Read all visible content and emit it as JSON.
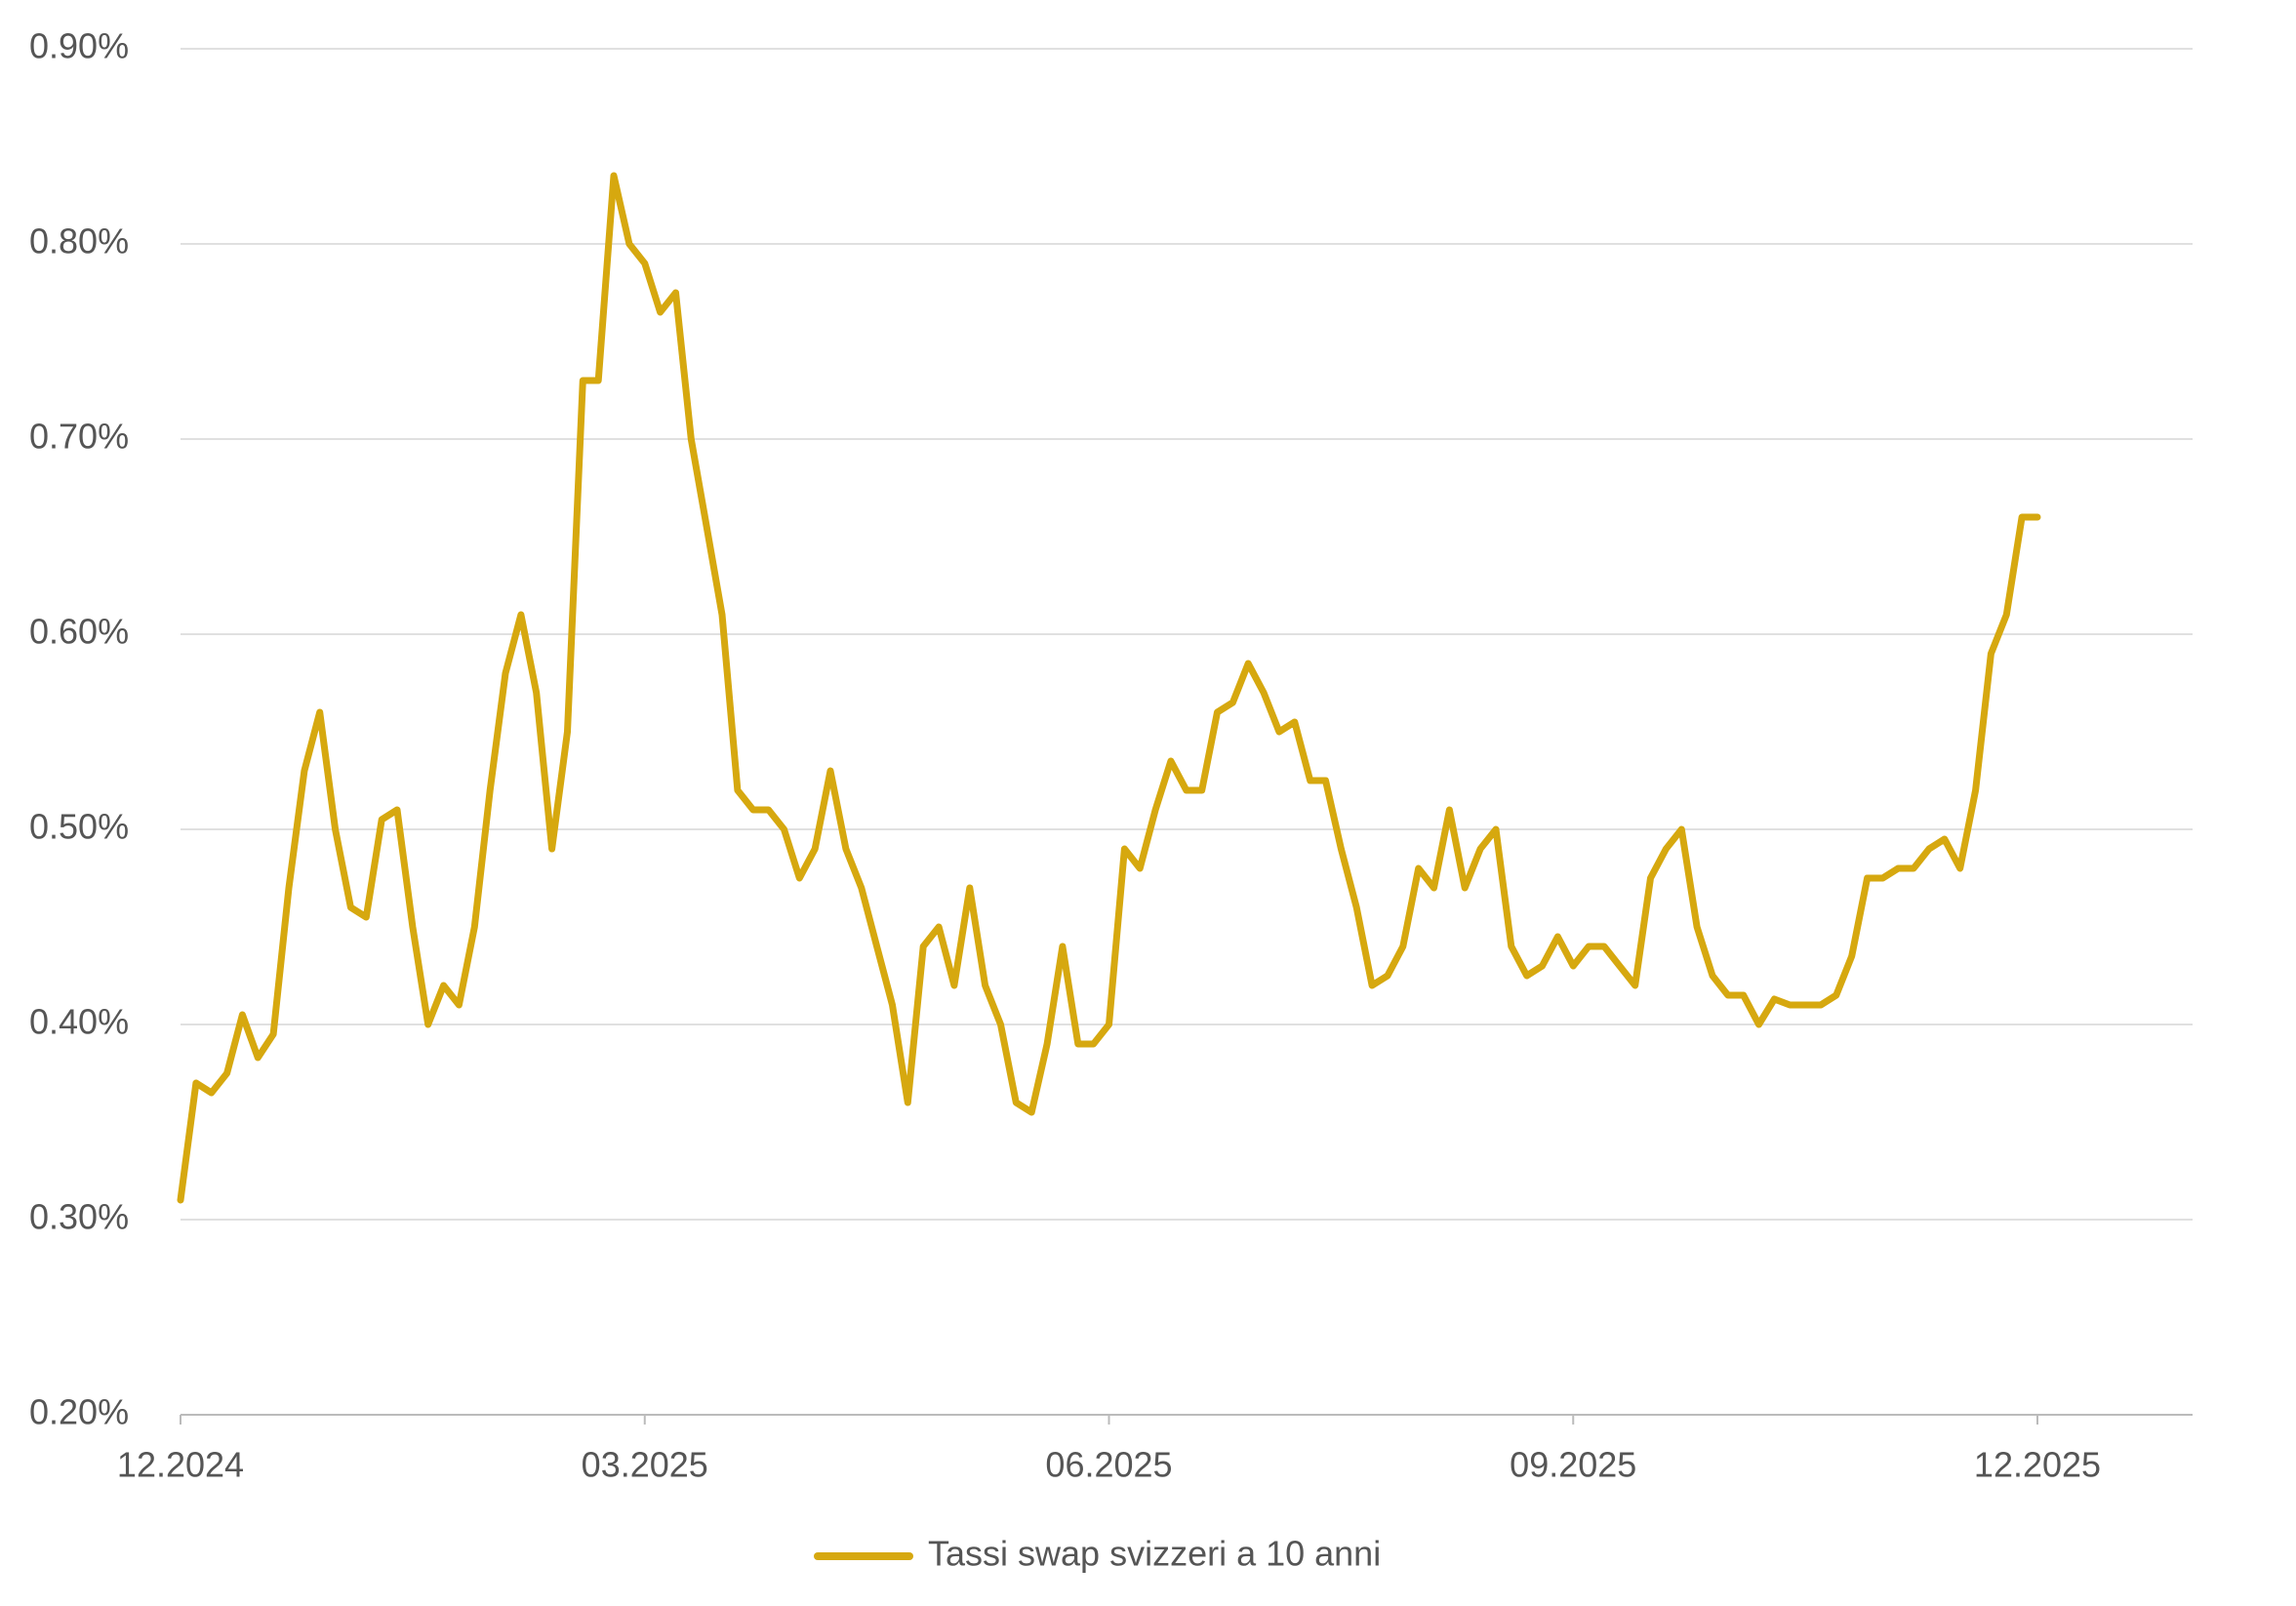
{
  "chart_data": {
    "type": "line",
    "categories": [
      "12.2024",
      null,
      null,
      null,
      null,
      null,
      null,
      null,
      null,
      null,
      null,
      null,
      null,
      null,
      null,
      null,
      null,
      null,
      null,
      null,
      null,
      null,
      null,
      null,
      null,
      null,
      null,
      null,
      null,
      null,
      "03.2025",
      null,
      null,
      null,
      null,
      null,
      null,
      null,
      null,
      null,
      null,
      null,
      null,
      null,
      null,
      null,
      null,
      null,
      null,
      null,
      null,
      null,
      null,
      null,
      null,
      null,
      null,
      null,
      null,
      null,
      "06.2025",
      null,
      null,
      null,
      null,
      null,
      null,
      null,
      null,
      null,
      null,
      null,
      null,
      null,
      null,
      null,
      null,
      null,
      null,
      null,
      null,
      null,
      null,
      null,
      null,
      null,
      null,
      null,
      null,
      null,
      "09.2025",
      null,
      null,
      null,
      null,
      null,
      null,
      null,
      null,
      null,
      null,
      null,
      null,
      null,
      null,
      null,
      null,
      null,
      null,
      null,
      null,
      null,
      null,
      null,
      null,
      null,
      null,
      null,
      null,
      null,
      "12.2025"
    ],
    "series": [
      {
        "name": "Tassi swap svizzeri a 10 anni",
        "color": "#d6a80f",
        "values": [
          0.31,
          0.37,
          0.365,
          0.375,
          0.405,
          0.383,
          0.395,
          0.47,
          0.53,
          0.56,
          0.5,
          0.46,
          0.455,
          0.505,
          0.51,
          0.45,
          0.4,
          0.42,
          0.41,
          0.45,
          0.52,
          0.58,
          0.61,
          0.57,
          0.49,
          0.55,
          0.73,
          0.73,
          0.835,
          0.8,
          0.79,
          0.765,
          0.775,
          0.7,
          0.655,
          0.61,
          0.52,
          0.51,
          0.51,
          0.5,
          0.475,
          0.49,
          0.53,
          0.49,
          0.47,
          0.44,
          0.41,
          0.36,
          0.44,
          0.45,
          0.42,
          0.47,
          0.42,
          0.4,
          0.36,
          0.355,
          0.39,
          0.44,
          0.39,
          0.39,
          0.4,
          0.49,
          0.48,
          0.51,
          0.535,
          0.52,
          0.52,
          0.56,
          0.565,
          0.585,
          0.57,
          0.55,
          0.555,
          0.525,
          0.525,
          0.49,
          0.46,
          0.42,
          0.425,
          0.44,
          0.48,
          0.47,
          0.51,
          0.47,
          0.49,
          0.5,
          0.44,
          0.425,
          0.43,
          0.445,
          0.43,
          0.44,
          0.44,
          0.43,
          0.42,
          0.475,
          0.49,
          0.5,
          0.45,
          0.425,
          0.415,
          0.415,
          0.4,
          0.413,
          0.41,
          0.41,
          0.41,
          0.415,
          0.435,
          0.475,
          0.475,
          0.48,
          0.48,
          0.49,
          0.495,
          0.48,
          0.52,
          0.59,
          0.61,
          0.66,
          0.66
        ]
      }
    ],
    "ylim": [
      0.2,
      0.9
    ],
    "yticks": [
      {
        "value": 0.2,
        "label": "0.20%"
      },
      {
        "value": 0.3,
        "label": "0.30%"
      },
      {
        "value": 0.4,
        "label": "0.40%"
      },
      {
        "value": 0.5,
        "label": "0.50%"
      },
      {
        "value": 0.6,
        "label": "0.60%"
      },
      {
        "value": 0.7,
        "label": "0.70%"
      },
      {
        "value": 0.8,
        "label": "0.80%"
      },
      {
        "value": 0.9,
        "label": "0.90%"
      }
    ],
    "grid": true,
    "legend": "bottom"
  }
}
